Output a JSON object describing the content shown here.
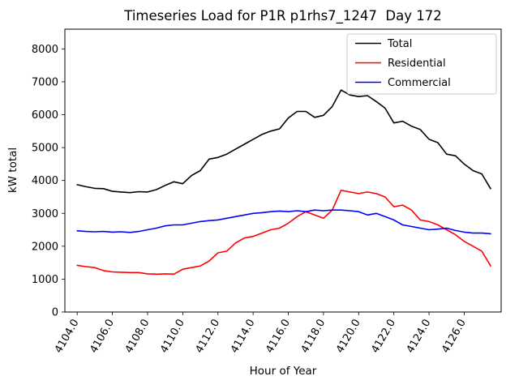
{
  "chart_data": {
    "type": "line",
    "title": "Timeseries Load for P1R p1rhs7_1247  Day 172",
    "xlabel": "Hour of Year",
    "ylabel": "kW total",
    "xlim": [
      4103.3,
      4128.1
    ],
    "ylim": [
      0,
      8600
    ],
    "grid": false,
    "legend_position": "upper right",
    "x_ticks": [
      4104,
      4106,
      4108,
      4110,
      4112,
      4114,
      4116,
      4118,
      4120,
      4122,
      4124,
      4126
    ],
    "x_tick_labels": [
      "4104.0",
      "4106.0",
      "4108.0",
      "4110.0",
      "4112.0",
      "4114.0",
      "4116.0",
      "4118.0",
      "4120.0",
      "4122.0",
      "4124.0",
      "4126.0"
    ],
    "y_ticks": [
      0,
      1000,
      2000,
      3000,
      4000,
      5000,
      6000,
      7000,
      8000
    ],
    "y_tick_labels": [
      "0",
      "1000",
      "2000",
      "3000",
      "4000",
      "5000",
      "6000",
      "7000",
      "8000"
    ],
    "x": [
      4104.0,
      4104.5,
      4105.0,
      4105.5,
      4106.0,
      4106.5,
      4107.0,
      4107.5,
      4108.0,
      4108.5,
      4109.0,
      4109.5,
      4110.0,
      4110.5,
      4111.0,
      4111.5,
      4112.0,
      4112.5,
      4113.0,
      4113.5,
      4114.0,
      4114.5,
      4115.0,
      4115.5,
      4116.0,
      4116.5,
      4117.0,
      4117.5,
      4118.0,
      4118.5,
      4119.0,
      4119.5,
      4120.0,
      4120.5,
      4121.0,
      4121.5,
      4122.0,
      4122.5,
      4123.0,
      4123.5,
      4124.0,
      4124.5,
      4125.0,
      4125.5,
      4126.0,
      4126.5,
      4127.0,
      4127.5
    ],
    "series": [
      {
        "name": "Total",
        "color": "#000000",
        "values": [
          3870,
          3810,
          3760,
          3750,
          3670,
          3650,
          3630,
          3660,
          3650,
          3720,
          3850,
          3960,
          3900,
          4150,
          4300,
          4650,
          4700,
          4800,
          4950,
          5100,
          5250,
          5400,
          5500,
          5570,
          5900,
          6100,
          6100,
          5920,
          5980,
          6250,
          6750,
          6600,
          6550,
          6580,
          6400,
          6200,
          5750,
          5800,
          5650,
          5550,
          5250,
          5150,
          4800,
          4750,
          4500,
          4300,
          4200,
          3750
        ]
      },
      {
        "name": "Residential",
        "color": "#ff0000",
        "values": [
          1420,
          1380,
          1350,
          1260,
          1220,
          1210,
          1200,
          1200,
          1160,
          1150,
          1160,
          1150,
          1300,
          1350,
          1400,
          1550,
          1800,
          1850,
          2100,
          2250,
          2300,
          2400,
          2500,
          2550,
          2700,
          2900,
          3050,
          2950,
          2850,
          3100,
          3700,
          3650,
          3600,
          3650,
          3600,
          3500,
          3200,
          3250,
          3100,
          2800,
          2750,
          2650,
          2500,
          2350,
          2150,
          2000,
          1850,
          1400
        ]
      },
      {
        "name": "Commercial",
        "color": "#0000ff",
        "values": [
          2470,
          2450,
          2440,
          2450,
          2430,
          2440,
          2420,
          2450,
          2500,
          2550,
          2620,
          2650,
          2650,
          2700,
          2750,
          2780,
          2800,
          2850,
          2900,
          2950,
          3000,
          3020,
          3050,
          3070,
          3050,
          3080,
          3050,
          3100,
          3080,
          3100,
          3100,
          3080,
          3050,
          2950,
          3000,
          2900,
          2800,
          2650,
          2600,
          2550,
          2500,
          2520,
          2550,
          2480,
          2430,
          2400,
          2400,
          2380
        ]
      }
    ]
  }
}
